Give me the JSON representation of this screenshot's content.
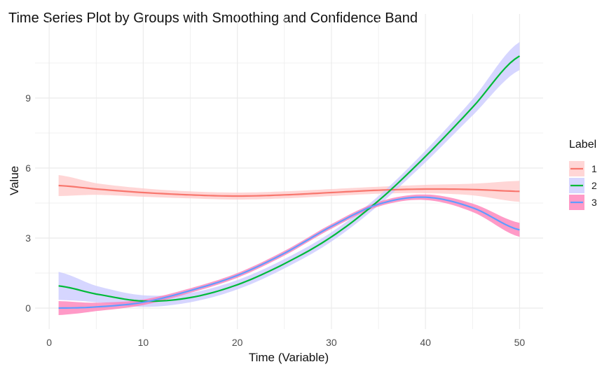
{
  "chart_data": {
    "type": "line",
    "title": "Time Series Plot by Groups with Smoothing and Confidence Band",
    "xlabel": "Time (Variable)",
    "ylabel": "Value",
    "xlim": [
      -1.5,
      52.5
    ],
    "ylim": [
      -0.9,
      11.7
    ],
    "x_ticks": [
      0,
      10,
      20,
      30,
      40,
      50
    ],
    "x_tick_labels": [
      "0",
      "10",
      "20",
      "30",
      "40",
      "50"
    ],
    "y_ticks": [
      0,
      3,
      6,
      9
    ],
    "y_tick_labels": [
      "0",
      "3",
      "6",
      "9"
    ],
    "grid": true,
    "legend": {
      "title": "Label",
      "position": "right"
    },
    "series": [
      {
        "name": "1",
        "color": "#F8766D",
        "fill": "#FFC8C8",
        "x": [
          1,
          5,
          10,
          15,
          20,
          25,
          30,
          35,
          40,
          45,
          50
        ],
        "values": [
          5.25,
          5.1,
          4.95,
          4.85,
          4.8,
          4.85,
          4.95,
          5.05,
          5.1,
          5.08,
          5.0
        ],
        "band": [
          0.45,
          0.25,
          0.18,
          0.15,
          0.15,
          0.15,
          0.15,
          0.15,
          0.18,
          0.25,
          0.45
        ]
      },
      {
        "name": "2",
        "color": "#00BA38",
        "fill": "#C8C8FF",
        "x": [
          1,
          5,
          10,
          15,
          20,
          25,
          30,
          35,
          40,
          45,
          50
        ],
        "values": [
          0.95,
          0.6,
          0.3,
          0.45,
          1.0,
          1.9,
          3.05,
          4.6,
          6.5,
          8.6,
          10.8
        ],
        "band": [
          0.6,
          0.35,
          0.25,
          0.2,
          0.2,
          0.2,
          0.2,
          0.2,
          0.25,
          0.35,
          0.6
        ]
      },
      {
        "name": "3",
        "color": "#619CFF",
        "fill": "#FF78B4",
        "x": [
          1,
          5,
          10,
          15,
          20,
          25,
          30,
          35,
          40,
          45,
          50
        ],
        "values": [
          0.0,
          0.05,
          0.25,
          0.75,
          1.4,
          2.35,
          3.5,
          4.45,
          4.75,
          4.3,
          3.35
        ],
        "band": [
          0.3,
          0.18,
          0.12,
          0.1,
          0.1,
          0.1,
          0.1,
          0.1,
          0.12,
          0.18,
          0.3
        ]
      }
    ]
  }
}
